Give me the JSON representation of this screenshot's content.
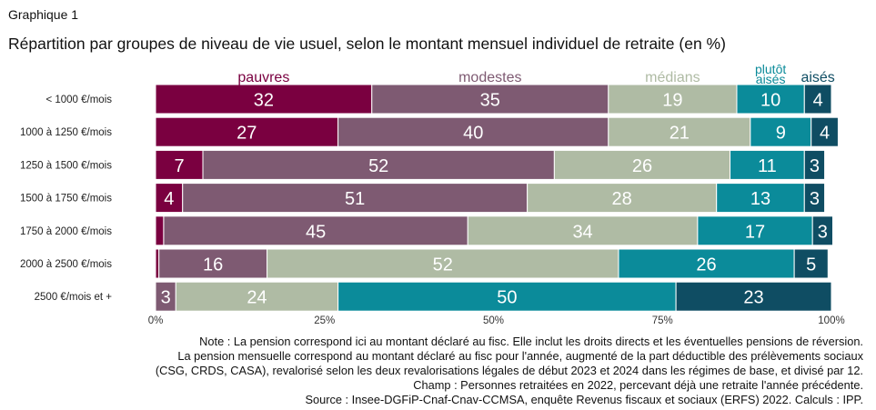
{
  "header": {
    "kicker": "Graphique 1",
    "title": "Répartition par groupes de niveau de vie usuel, selon le montant mensuel individuel de retraite (en %)"
  },
  "chart_data": {
    "type": "bar",
    "orientation": "horizontal",
    "stacked": true,
    "categories": [
      "< 1000 €/mois",
      "1000 à 1250 €/mois",
      "1250 à 1500 €/mois",
      "1500 à 1750 €/mois",
      "1750 à 2000 €/mois",
      "2000 à 2500 €/mois",
      "2500 €/mois et +"
    ],
    "series": [
      {
        "name": "pauvres",
        "color": "#7a0040",
        "values": [
          32,
          27,
          7,
          4,
          1.2,
          0.5,
          0
        ],
        "labels": [
          "32",
          "27",
          "7",
          "4",
          "",
          "",
          ""
        ]
      },
      {
        "name": "modestes",
        "color": "#7e5a72",
        "values": [
          35,
          40,
          52,
          51,
          45,
          16,
          3
        ],
        "labels": [
          "35",
          "40",
          "52",
          "51",
          "45",
          "16",
          "3"
        ]
      },
      {
        "name": "médians",
        "color": "#afbba4",
        "values": [
          19,
          21,
          26,
          28,
          34,
          52,
          24
        ],
        "labels": [
          "19",
          "21",
          "26",
          "28",
          "34",
          "52",
          "24"
        ]
      },
      {
        "name": "plutôt aisés",
        "color": "#0b8b9a",
        "values": [
          10,
          9,
          11,
          13,
          17,
          26,
          50
        ],
        "labels": [
          "10",
          "9",
          "11",
          "13",
          "17",
          "26",
          "50"
        ]
      },
      {
        "name": "aisés",
        "color": "#0f4d63",
        "values": [
          4,
          4,
          3,
          3,
          3,
          5,
          23
        ],
        "labels": [
          "4",
          "4",
          "3",
          "3",
          "3",
          "5",
          "23"
        ]
      }
    ],
    "legend_labels": [
      "pauvres",
      "modestes",
      "médians",
      "plutôt aisés",
      "aisés"
    ],
    "x_ticks": [
      "0%",
      "25%",
      "50%",
      "75%",
      "100%"
    ],
    "x_tick_values": [
      0,
      25,
      50,
      75,
      100
    ],
    "xlim": [
      0,
      100
    ],
    "legend_position": "top, labels above each segment"
  },
  "notes": [
    "Note : La pension correspond ici au montant déclaré au fisc. Elle inclut les droits directs et les éventuelles pensions de réversion.",
    "La pension mensuelle correspond au montant déclaré au fisc pour l'année, augmenté de la part déductible des prélèvements sociaux",
    "(CSG, CRDS, CASA), revalorisé selon les deux revalorisations légales de début 2023 et 2024 dans les régimes de base, et divisé par 12.",
    "Champ : Personnes retraitées en 2022, percevant déjà une retraite l'année précédente.",
    "Source : Insee-DGFiP-Cnaf-Cnav-CCMSA, enquête Revenus fiscaux et sociaux (ERFS) 2022. Calculs : IPP."
  ]
}
